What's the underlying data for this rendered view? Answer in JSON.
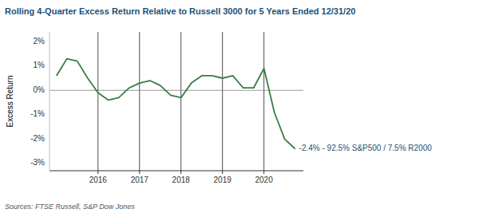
{
  "chart_data": {
    "type": "line",
    "title": "Rolling 4-Quarter Excess Return Relative to Russell 3000 for 5 Years Ended 12/31/20",
    "y_label": "Excess Return",
    "source": "Sources: FTSE Russell, S&P Dow Jones",
    "annotation": "-2.4% - 92.5% S&P500 / 7.5% R2000",
    "color": "#3a7d44",
    "grid": "x",
    "x": [
      2015.0,
      2015.25,
      2015.5,
      2015.75,
      2016.0,
      2016.25,
      2016.5,
      2016.75,
      2017.0,
      2017.25,
      2017.5,
      2017.75,
      2018.0,
      2018.25,
      2018.5,
      2018.75,
      2019.0,
      2019.25,
      2019.5,
      2019.75,
      2020.0,
      2020.25,
      2020.5,
      2020.75
    ],
    "values": [
      0.006,
      0.013,
      0.012,
      0.005,
      -0.001,
      -0.004,
      -0.003,
      0.001,
      0.003,
      0.004,
      0.002,
      -0.002,
      -0.003,
      0.003,
      0.006,
      0.006,
      0.005,
      0.006,
      0.001,
      0.001,
      0.009,
      -0.009,
      -0.02,
      -0.024
    ],
    "xlim": [
      2014.83,
      2020.95
    ],
    "xticks": [
      2016,
      2017,
      2018,
      2019,
      2020
    ],
    "ylim": [
      -0.033,
      0.024
    ],
    "yticks": [
      {
        "value": -0.03,
        "label": "-3%"
      },
      {
        "value": -0.02,
        "label": "-2%"
      },
      {
        "value": -0.01,
        "label": "-1%"
      },
      {
        "value": 0.0,
        "label": "0%"
      },
      {
        "value": 0.01,
        "label": "1%"
      },
      {
        "value": 0.02,
        "label": "2%"
      }
    ]
  }
}
